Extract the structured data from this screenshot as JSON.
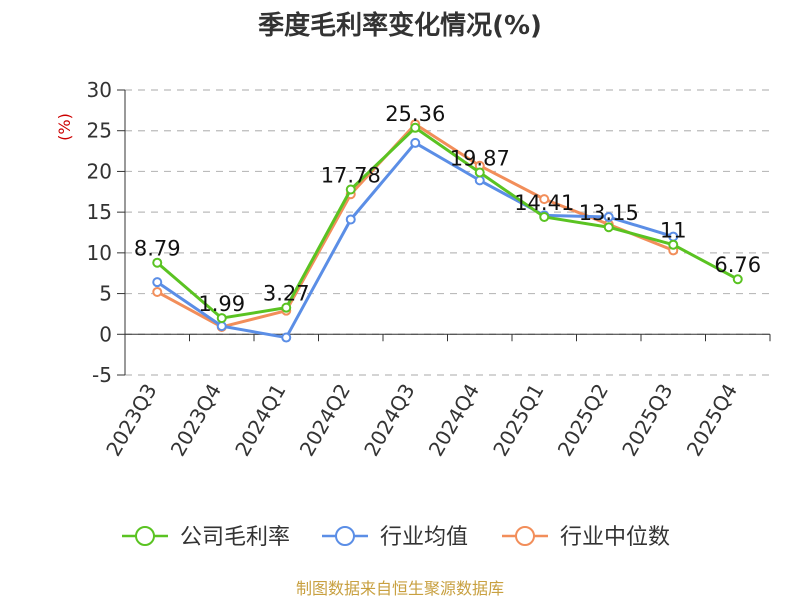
{
  "chart_data": {
    "type": "line",
    "title": "季度毛利率变化情况(%)",
    "ylabel": "(%)",
    "categories": [
      "2023Q3",
      "2023Q4",
      "2024Q1",
      "2024Q2",
      "2024Q3",
      "2024Q4",
      "2025Q1",
      "2025Q2",
      "2025Q3",
      "2025Q4"
    ],
    "ylim": [
      -5,
      30
    ],
    "yticks": [
      "30",
      "25",
      "20",
      "15",
      "10",
      "5",
      "0",
      "-5"
    ],
    "grid": true,
    "legend_position": "bottom",
    "series": [
      {
        "name": "公司毛利率",
        "color": "#5ac322",
        "values": [
          8.79,
          1.99,
          3.27,
          17.78,
          25.36,
          19.87,
          14.41,
          13.15,
          11,
          6.76
        ],
        "labels": [
          "8.79",
          "1.99",
          "3.27",
          "17.78",
          "25.36",
          "19.87",
          "14.41",
          "13.15",
          "11",
          "6.76"
        ]
      },
      {
        "name": "行业均值",
        "color": "#5b8ee6",
        "values": [
          6.4,
          1.0,
          -0.4,
          14.1,
          23.5,
          18.9,
          14.6,
          14.4,
          12.0,
          null
        ]
      },
      {
        "name": "行业中位数",
        "color": "#f28e5a",
        "values": [
          5.2,
          0.9,
          2.9,
          17.2,
          25.8,
          20.7,
          16.6,
          13.5,
          10.3,
          null
        ]
      }
    ]
  },
  "source": "制图数据来自恒生聚源数据库"
}
